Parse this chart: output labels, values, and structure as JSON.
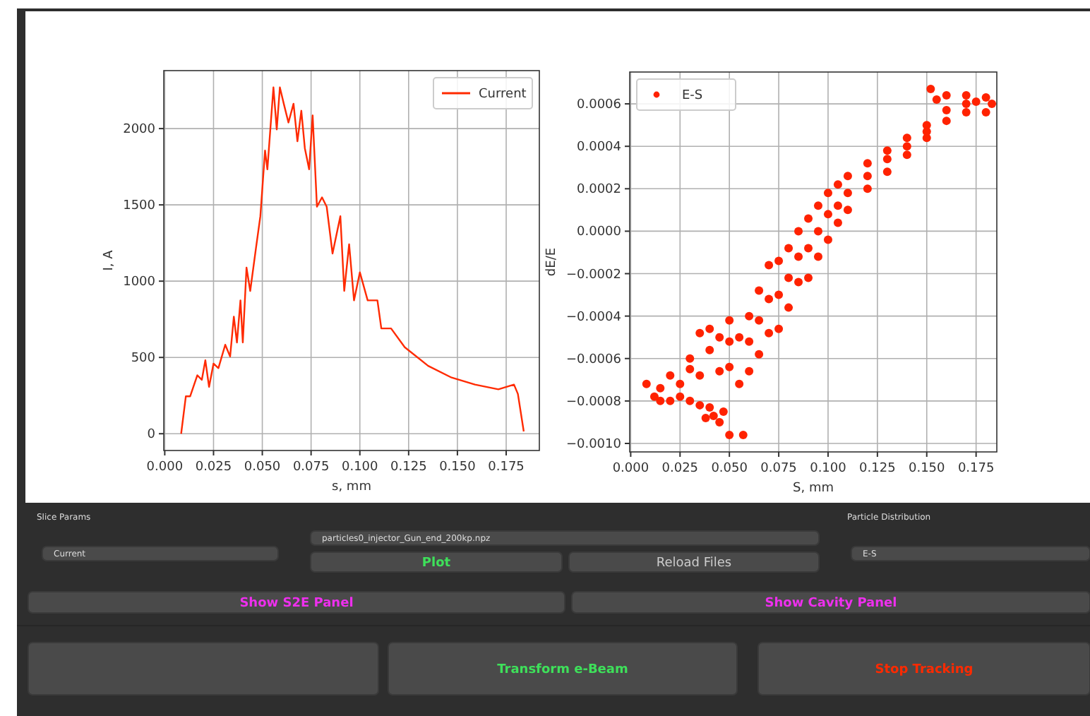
{
  "chart_data": [
    {
      "type": "line",
      "xlabel": "s, mm",
      "ylabel": "I, A",
      "xlim": [
        -0.0005,
        0.192
      ],
      "ylim": [
        -110,
        2380
      ],
      "xticks": [
        {
          "value": 0,
          "label": "0.000"
        },
        {
          "value": 0.025,
          "label": "0.025"
        },
        {
          "value": 0.05,
          "label": "0.050"
        },
        {
          "value": 0.075,
          "label": "0.075"
        },
        {
          "value": 0.1,
          "label": "0.100"
        },
        {
          "value": 0.125,
          "label": "0.125"
        },
        {
          "value": 0.15,
          "label": "0.150"
        },
        {
          "value": 0.175,
          "label": "0.175"
        }
      ],
      "yticks": [
        0,
        500,
        1000,
        1500,
        2000
      ],
      "grid": true,
      "legend": "top right",
      "x": [
        0.0084,
        0.0108,
        0.013,
        0.0167,
        0.019,
        0.0208,
        0.0227,
        0.025,
        0.0275,
        0.031,
        0.0335,
        0.0354,
        0.037,
        0.0388,
        0.04,
        0.0419,
        0.0438,
        0.0467,
        0.049,
        0.0514,
        0.0526,
        0.0557,
        0.0574,
        0.059,
        0.061,
        0.0634,
        0.066,
        0.068,
        0.07,
        0.0718,
        0.074,
        0.0758,
        0.078,
        0.0806,
        0.083,
        0.086,
        0.0885,
        0.09,
        0.092,
        0.0945,
        0.097,
        0.1,
        0.104,
        0.109,
        0.111,
        0.116,
        0.123,
        0.135,
        0.147,
        0.159,
        0.171,
        0.179,
        0.181,
        0.184
      ],
      "series": [
        {
          "name": "Current",
          "color": "#ff2a00",
          "values": [
            0,
            245,
            245,
            383,
            353,
            482,
            307,
            460,
            430,
            583,
            506,
            767,
            598,
            874,
            598,
            1089,
            936,
            1212,
            1426,
            1856,
            1733,
            2270,
            1994,
            2270,
            2163,
            2040,
            2163,
            1917,
            2117,
            1871,
            1733,
            2086,
            1488,
            1549,
            1488,
            1181,
            1334,
            1426,
            936,
            1242,
            874,
            1058,
            874,
            874,
            690,
            690,
            567,
            445,
            368,
            322,
            291,
            322,
            261,
            15
          ]
        }
      ]
    },
    {
      "type": "scatter",
      "xlabel": "S, mm",
      "ylabel": "dE/E",
      "xlim": [
        -0.0005,
        0.1855
      ],
      "ylim": [
        -0.00104,
        0.00075
      ],
      "xticks": [
        {
          "value": 0,
          "label": "0.000"
        },
        {
          "value": 0.025,
          "label": "0.025"
        },
        {
          "value": 0.05,
          "label": "0.050"
        },
        {
          "value": 0.075,
          "label": "0.075"
        },
        {
          "value": 0.1,
          "label": "0.100"
        },
        {
          "value": 0.125,
          "label": "0.125"
        },
        {
          "value": 0.15,
          "label": "0.150"
        },
        {
          "value": 0.175,
          "label": "0.175"
        }
      ],
      "yticks": [
        {
          "value": -0.001,
          "label": "−0.0010"
        },
        {
          "value": -0.0008,
          "label": "−0.0008"
        },
        {
          "value": -0.0006,
          "label": "−0.0006"
        },
        {
          "value": -0.0004,
          "label": "−0.0004"
        },
        {
          "value": -0.0002,
          "label": "−0.0002"
        },
        {
          "value": 0,
          "label": "0.0000"
        },
        {
          "value": 0.0002,
          "label": "0.0002"
        },
        {
          "value": 0.0004,
          "label": "0.0004"
        },
        {
          "value": 0.0006,
          "label": "0.0006"
        }
      ],
      "grid": true,
      "legend": "top left",
      "marker": "circle",
      "x": [
        0.008,
        0.012,
        0.015,
        0.02,
        0.025,
        0.03,
        0.035,
        0.04,
        0.045,
        0.042,
        0.05,
        0.057,
        0.047,
        0.038,
        0.02,
        0.03,
        0.035,
        0.04,
        0.045,
        0.05,
        0.06,
        0.065,
        0.07,
        0.075,
        0.08,
        0.085,
        0.09,
        0.095,
        0.1,
        0.105,
        0.11,
        0.12,
        0.13,
        0.14,
        0.15,
        0.155,
        0.16,
        0.17,
        0.18,
        0.152,
        0.015,
        0.025,
        0.035,
        0.045,
        0.05,
        0.055,
        0.06,
        0.065,
        0.07,
        0.075,
        0.08,
        0.085,
        0.09,
        0.095,
        0.1,
        0.105,
        0.11,
        0.12,
        0.13,
        0.14,
        0.15,
        0.16,
        0.17,
        0.18,
        0.03,
        0.04,
        0.05,
        0.055,
        0.06,
        0.065,
        0.07,
        0.075,
        0.08,
        0.085,
        0.09,
        0.095,
        0.1,
        0.105,
        0.11,
        0.12,
        0.13,
        0.14,
        0.15,
        0.16,
        0.17,
        0.175,
        0.183
      ],
      "series": [
        {
          "name": "E-S",
          "color": "#ff2200",
          "values": [
            -0.00072,
            -0.00078,
            -0.0008,
            -0.0008,
            -0.00078,
            -0.0008,
            -0.00082,
            -0.00083,
            -0.0009,
            -0.00087,
            -0.00096,
            -0.00096,
            -0.00085,
            -0.00088,
            -0.00068,
            -0.0006,
            -0.00048,
            -0.00046,
            -0.0005,
            -0.00042,
            -0.0004,
            -0.00028,
            -0.00016,
            -0.00014,
            -8e-05,
            0.0,
            6e-05,
            0.00012,
            0.00018,
            0.00022,
            0.00026,
            0.00032,
            0.00038,
            0.00044,
            0.0005,
            0.00062,
            0.00064,
            0.00064,
            0.00063,
            0.00067,
            -0.00074,
            -0.00072,
            -0.00068,
            -0.00066,
            -0.00064,
            -0.00072,
            -0.00066,
            -0.00058,
            -0.00048,
            -0.00046,
            -0.00036,
            -0.00024,
            -0.00022,
            -0.00012,
            -4e-05,
            4e-05,
            0.0001,
            0.0002,
            0.00028,
            0.00036,
            0.00044,
            0.00052,
            0.00056,
            0.00056,
            -0.00065,
            -0.00056,
            -0.00052,
            -0.0005,
            -0.00052,
            -0.00042,
            -0.00032,
            -0.0003,
            -0.00022,
            -0.00012,
            -8e-05,
            0.0,
            8e-05,
            0.00012,
            0.00018,
            0.00026,
            0.00034,
            0.0004,
            0.00047,
            0.00057,
            0.0006,
            0.00061,
            0.0006
          ]
        }
      ]
    },
    {
      "type": "other",
      "annotations": [
        "Slice Params",
        "Current",
        "particles0_injector_Gun_end_200kp.npz",
        "Plot",
        "Reload Files",
        "Particle Distribution",
        "E-S",
        "Show S2E Panel",
        "Show Cavity Panel",
        "Transform e-Beam",
        "Stop Tracking"
      ]
    }
  ]
}
